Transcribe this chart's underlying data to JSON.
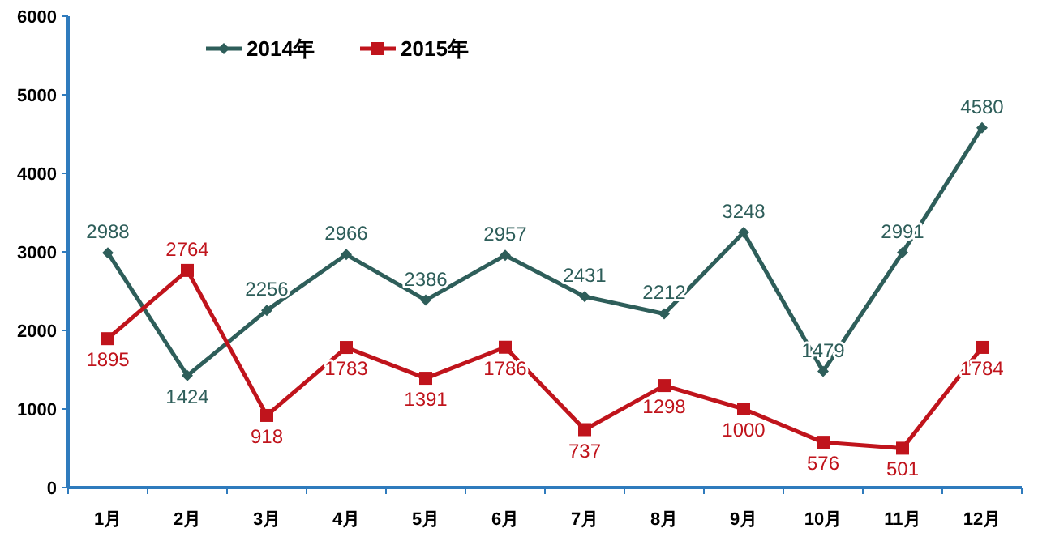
{
  "chart_data": {
    "type": "line",
    "categories": [
      "1月",
      "2月",
      "3月",
      "4月",
      "5月",
      "6月",
      "7月",
      "8月",
      "9月",
      "10月",
      "11月",
      "12月"
    ],
    "series": [
      {
        "name": "2014年",
        "color": "#2e5e5a",
        "marker": "diamond",
        "values": [
          2988,
          1424,
          2256,
          2966,
          2386,
          2957,
          2431,
          2212,
          3248,
          1479,
          2991,
          4580
        ]
      },
      {
        "name": "2015年",
        "color": "#c0141c",
        "marker": "square",
        "values": [
          1895,
          2764,
          918,
          1783,
          1391,
          1786,
          737,
          1298,
          1000,
          576,
          501,
          1784
        ]
      }
    ],
    "ylim": [
      0,
      6000
    ],
    "yticks": [
      0,
      1000,
      2000,
      3000,
      4000,
      5000,
      6000
    ],
    "grid": false,
    "legend": "top left",
    "data_labels": true
  }
}
